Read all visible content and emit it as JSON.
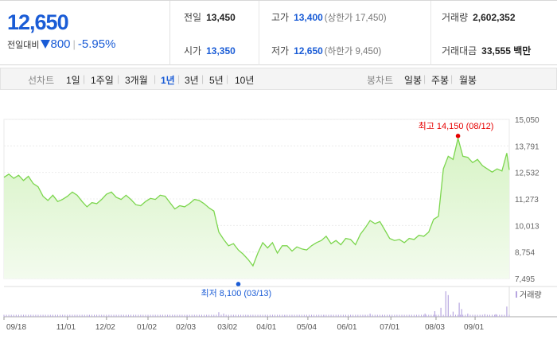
{
  "quote": {
    "price": "12,650",
    "change_label": "전일대비",
    "change_value": "800",
    "change_pct": "-5.95%",
    "stats": {
      "prev_close_label": "전일",
      "prev_close": "13,450",
      "open_label": "시가",
      "open": "13,350",
      "high_label": "고가",
      "high": "13,400",
      "upper_limit": "(상한가 17,450)",
      "low_label": "저가",
      "low": "12,650",
      "lower_limit": "(하한가 9,450)",
      "volume_label": "거래량",
      "volume": "2,602,352",
      "amount_label": "거래대금",
      "amount": "33,555 백만"
    }
  },
  "period_bar": {
    "line_title": "선차트",
    "line_options": [
      "1일",
      "1주일",
      "3개월",
      "1년",
      "3년",
      "5년",
      "10년"
    ],
    "active": "1년",
    "candle_title": "봉차트",
    "candle_options": [
      "일봉",
      "주봉",
      "월봉"
    ]
  },
  "colors": {
    "up": "#e60000",
    "down": "#1a5cd6",
    "line": "#7cd64e",
    "fill_top": "#d6f3c4",
    "fill_bottom": "#f3fbee",
    "volume": "#b7a6e0"
  },
  "chart_data": {
    "type": "area",
    "ylim": [
      7495,
      15050
    ],
    "y_ticks": [
      "15,050",
      "13,791",
      "12,532",
      "11,273",
      "10,013",
      "8,754",
      "7,495"
    ],
    "x_ticks": [
      "09/18",
      "11/01",
      "12/02",
      "01/02",
      "02/03",
      "03/02",
      "04/01",
      "05/04",
      "06/01",
      "07/01",
      "08/03",
      "09/01"
    ],
    "price_points": [
      [
        0,
        12300
      ],
      [
        4,
        12450
      ],
      [
        8,
        12250
      ],
      [
        12,
        12400
      ],
      [
        16,
        12150
      ],
      [
        20,
        12350
      ],
      [
        24,
        12000
      ],
      [
        28,
        11850
      ],
      [
        32,
        11400
      ],
      [
        36,
        11200
      ],
      [
        40,
        11450
      ],
      [
        44,
        11150
      ],
      [
        48,
        11250
      ],
      [
        52,
        11400
      ],
      [
        56,
        11600
      ],
      [
        60,
        11450
      ],
      [
        64,
        11150
      ],
      [
        68,
        10900
      ],
      [
        72,
        11100
      ],
      [
        76,
        11050
      ],
      [
        80,
        11250
      ],
      [
        84,
        11500
      ],
      [
        88,
        11600
      ],
      [
        92,
        11350
      ],
      [
        96,
        11250
      ],
      [
        100,
        11450
      ],
      [
        104,
        11250
      ],
      [
        108,
        11000
      ],
      [
        112,
        10950
      ],
      [
        116,
        11150
      ],
      [
        120,
        11300
      ],
      [
        124,
        11250
      ],
      [
        128,
        11450
      ],
      [
        132,
        11400
      ],
      [
        136,
        11100
      ],
      [
        140,
        10800
      ],
      [
        144,
        10950
      ],
      [
        148,
        10900
      ],
      [
        152,
        11050
      ],
      [
        156,
        11250
      ],
      [
        160,
        11200
      ],
      [
        164,
        11050
      ],
      [
        168,
        10850
      ],
      [
        172,
        10700
      ],
      [
        176,
        9700
      ],
      [
        180,
        9350
      ],
      [
        184,
        9050
      ],
      [
        188,
        9150
      ],
      [
        192,
        8850
      ],
      [
        196,
        8650
      ],
      [
        200,
        8400
      ],
      [
        204,
        8100
      ],
      [
        208,
        8700
      ],
      [
        212,
        9200
      ],
      [
        216,
        8950
      ],
      [
        220,
        9200
      ],
      [
        224,
        8700
      ],
      [
        228,
        9050
      ],
      [
        232,
        9050
      ],
      [
        236,
        8800
      ],
      [
        240,
        9000
      ],
      [
        244,
        8900
      ],
      [
        248,
        8850
      ],
      [
        252,
        9050
      ],
      [
        256,
        9200
      ],
      [
        260,
        9300
      ],
      [
        264,
        9500
      ],
      [
        268,
        9150
      ],
      [
        272,
        9300
      ],
      [
        276,
        9100
      ],
      [
        280,
        9400
      ],
      [
        284,
        9350
      ],
      [
        288,
        9100
      ],
      [
        292,
        9600
      ],
      [
        296,
        9900
      ],
      [
        300,
        10250
      ],
      [
        304,
        10100
      ],
      [
        308,
        10200
      ],
      [
        312,
        9800
      ],
      [
        316,
        9400
      ],
      [
        320,
        9300
      ],
      [
        324,
        9350
      ],
      [
        328,
        9200
      ],
      [
        332,
        9400
      ],
      [
        336,
        9350
      ],
      [
        340,
        9550
      ],
      [
        344,
        9500
      ],
      [
        348,
        9700
      ],
      [
        352,
        10300
      ],
      [
        356,
        10450
      ],
      [
        360,
        12700
      ],
      [
        364,
        13300
      ],
      [
        368,
        13150
      ],
      [
        372,
        14150
      ],
      [
        376,
        13300
      ],
      [
        380,
        13250
      ],
      [
        384,
        13000
      ],
      [
        388,
        13150
      ],
      [
        392,
        12850
      ],
      [
        396,
        12700
      ],
      [
        400,
        12550
      ],
      [
        404,
        12700
      ],
      [
        408,
        12600
      ],
      [
        412,
        13450
      ],
      [
        414,
        12650
      ]
    ],
    "x_max": 414,
    "x_tick_positions": [
      0,
      52,
      84,
      118,
      150,
      184,
      216,
      249,
      282,
      317,
      354,
      386
    ],
    "annotations": [
      {
        "label": "최고 14,150 (08/12)",
        "x": 372,
        "y": 14150,
        "kind": "high"
      },
      {
        "label": "최저 8,100 (03/13)",
        "x": 192,
        "y": 8100,
        "kind": "low"
      }
    ],
    "volume_label": "거래량",
    "volume": [
      [
        40,
        0.04
      ],
      [
        70,
        0.05
      ],
      [
        100,
        0.04
      ],
      [
        150,
        0.05
      ],
      [
        176,
        0.18
      ],
      [
        180,
        0.12
      ],
      [
        200,
        0.06
      ],
      [
        230,
        0.05
      ],
      [
        262,
        0.07
      ],
      [
        296,
        0.07
      ],
      [
        300,
        0.12
      ],
      [
        310,
        0.05
      ],
      [
        345,
        0.12
      ],
      [
        353,
        0.22
      ],
      [
        358,
        0.35
      ],
      [
        362,
        1.0
      ],
      [
        364,
        0.85
      ],
      [
        368,
        0.2
      ],
      [
        373,
        0.55
      ],
      [
        375,
        0.3
      ],
      [
        380,
        0.12
      ],
      [
        394,
        0.1
      ],
      [
        403,
        0.1
      ],
      [
        412,
        0.4
      ]
    ]
  }
}
